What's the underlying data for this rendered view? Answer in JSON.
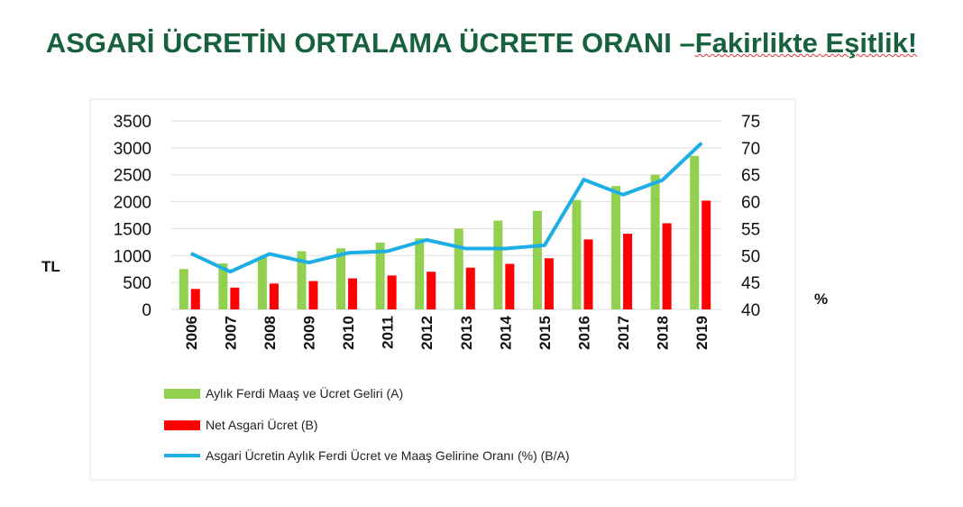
{
  "title_main": "ASGARİ ÜCRETİN ORTALAMA ÜCRETE ORANI –",
  "title_emph": "Fakirlikte Eşitlik!",
  "chart_data": {
    "type": "bar+line",
    "categories": [
      "2006",
      "2007",
      "2008",
      "2009",
      "2010",
      "2011",
      "2012",
      "2013",
      "2014",
      "2015",
      "2016",
      "2017",
      "2018",
      "2019"
    ],
    "series": [
      {
        "name": "Aylık Ferdi Maaş ve Ücret Geliri (A)",
        "type": "bar",
        "axis": "left",
        "color": "#92d050",
        "values": [
          750,
          855,
          965,
          1080,
          1135,
          1240,
          1320,
          1500,
          1650,
          1830,
          2030,
          2290,
          2500,
          2850
        ]
      },
      {
        "name": "Net Asgari Ücret (B)",
        "type": "bar",
        "axis": "left",
        "color": "#ff0000",
        "values": [
          380,
          405,
          480,
          527,
          577,
          630,
          700,
          775,
          846,
          950,
          1300,
          1405,
          1600,
          2020
        ]
      },
      {
        "name": "Asgari Ücretin Aylık Ferdi Ücret ve Maaş Gelirine Oranı (%) (B/A)",
        "type": "line",
        "axis": "right",
        "color": "#1eaee6",
        "values": [
          50.4,
          47.0,
          50.3,
          48.7,
          50.5,
          50.8,
          52.9,
          51.3,
          51.3,
          51.9,
          64.1,
          61.3,
          64.0,
          70.9
        ]
      }
    ],
    "ylabel_left": "TL",
    "ylabel_right": "%",
    "ylim_left": [
      0,
      3500
    ],
    "ylim_right": [
      40,
      75
    ],
    "yticks_left": [
      "0",
      "500",
      "1000",
      "1500",
      "2000",
      "2500",
      "3000",
      "3500"
    ],
    "yticks_right": [
      "40",
      "45",
      "50",
      "55",
      "60",
      "65",
      "70",
      "75"
    ],
    "grid": true,
    "legend_position": "bottom"
  }
}
